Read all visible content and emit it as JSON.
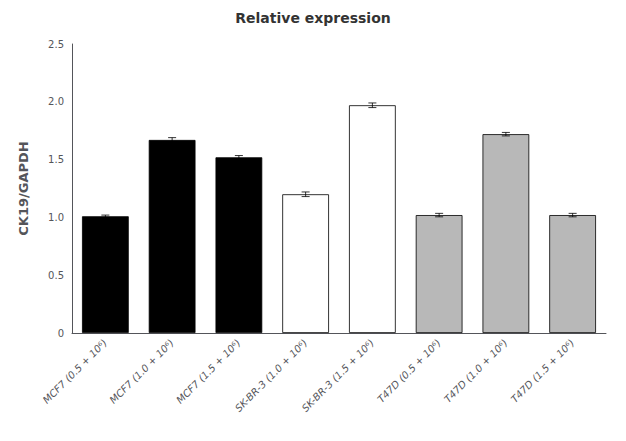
{
  "chart_data": {
    "type": "bar",
    "title": "Relative expression",
    "ylabel": "CK19/GAPDH",
    "categories": [
      "MCF7 (0.5 + 10⁶)",
      "MCF7 (1.0 + 10⁶)",
      "MCF7 (1.5 + 10⁶)",
      "SK-BR-3 (1.0 + 10⁶)",
      "SK-BR-3 (1.5 + 10⁶)",
      "T47D (0.5 + 10⁶)",
      "T47D (1.0 + 10⁶)",
      "T47D (1.5 + 10⁶)"
    ],
    "values": [
      1.01,
      1.67,
      1.52,
      1.2,
      1.97,
      1.02,
      1.72,
      1.02
    ],
    "errors": [
      0.01,
      0.02,
      0.015,
      0.02,
      0.02,
      0.015,
      0.015,
      0.015
    ],
    "colors": [
      "#000000",
      "#000000",
      "#000000",
      "#ffffff",
      "#ffffff",
      "#b8b8b8",
      "#b8b8b8",
      "#b8b8b8"
    ],
    "ylim": [
      0,
      2.5
    ],
    "yticks": [
      0,
      0.5,
      {
        "value": 1,
        "label": "1.0"
      },
      1.5,
      {
        "value": 2,
        "label": "2.0"
      },
      2.5
    ],
    "grid": false
  }
}
